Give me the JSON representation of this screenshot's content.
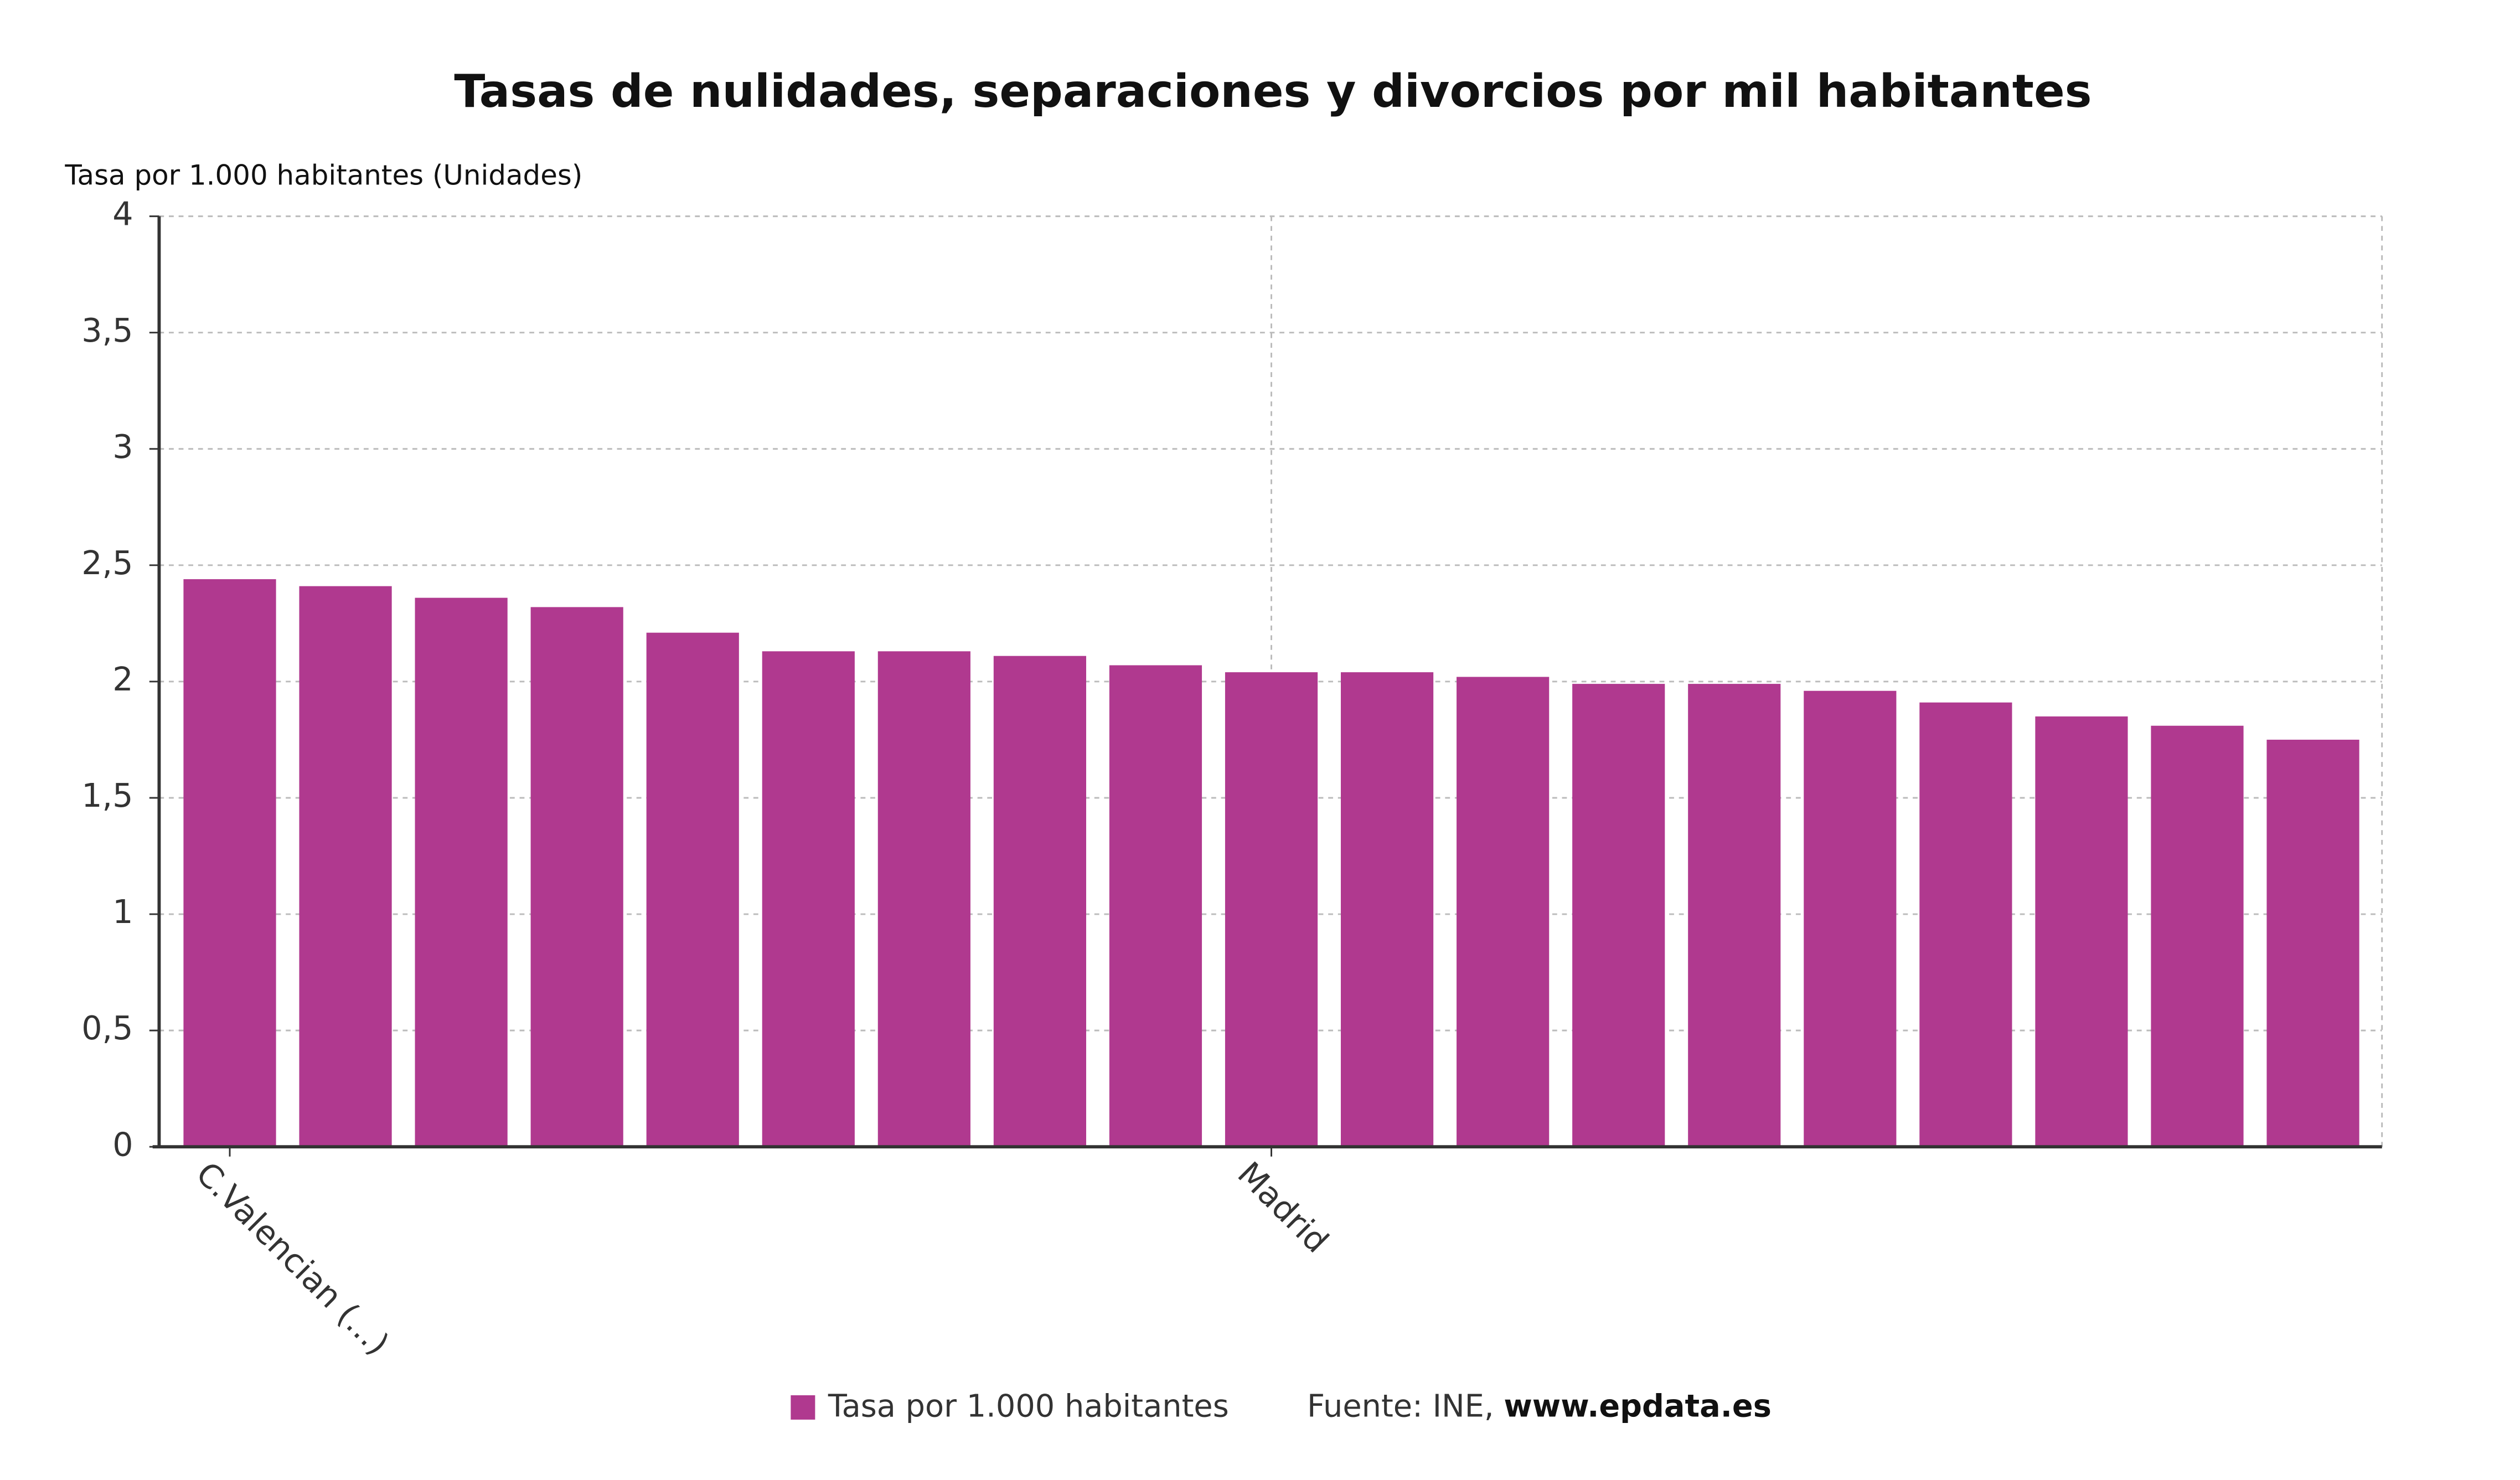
{
  "chart_data": {
    "type": "bar",
    "title": "Tasas de nulidades, separaciones y divorcios por mil habitantes",
    "y_axis_label": "Tasa por 1.000 habitantes (Unidades)",
    "categories": [
      "C.Valencian (...)",
      null,
      null,
      null,
      null,
      null,
      null,
      null,
      null,
      "Madrid",
      null,
      null,
      null,
      null,
      null,
      null,
      null,
      null,
      null
    ],
    "series": [
      {
        "name": "Tasa por 1.000 habitantes",
        "color": "#b0398f",
        "values": [
          2.44,
          2.41,
          2.36,
          2.32,
          2.21,
          2.13,
          2.13,
          2.11,
          2.07,
          2.04,
          2.04,
          2.02,
          1.99,
          1.99,
          1.96,
          1.91,
          1.85,
          1.81,
          1.75
        ]
      }
    ],
    "ylim": [
      0,
      4
    ],
    "yticks": [
      0,
      {
        "value": 0.5,
        "label": "0,5"
      },
      1,
      {
        "value": 1.5,
        "label": "1,5"
      },
      2,
      {
        "value": 2.5,
        "label": "2,5"
      },
      3,
      {
        "value": 3.5,
        "label": "3,5"
      },
      4
    ],
    "grid": true,
    "source_label": "Fuente: INE,",
    "source_link": "www.epdata.es"
  }
}
